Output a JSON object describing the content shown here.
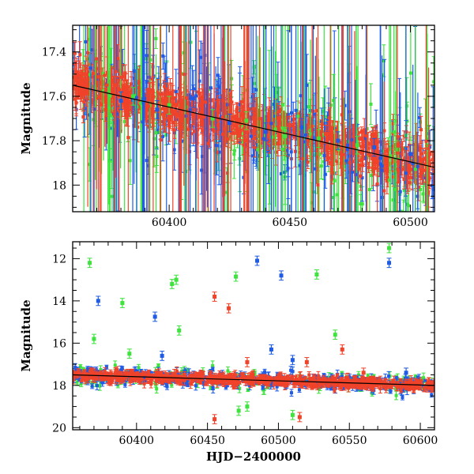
{
  "colors": {
    "blue": "#1f5be6",
    "green": "#3ee33e",
    "red": "#f0432a",
    "frame": "#000000",
    "trend": "#000000"
  },
  "chart_data": [
    {
      "type": "scatter",
      "panel": "top",
      "title": "",
      "xlabel": "",
      "ylabel": "Magnitude",
      "xlim": [
        60360,
        60510
      ],
      "ylim": [
        18.12,
        17.28
      ],
      "inverted_y": true,
      "xticks_major": [
        60400,
        60450,
        60500
      ],
      "yticks_major": [
        17.4,
        17.6,
        17.8,
        18
      ],
      "xtick_labels": [
        "60400",
        "60450",
        "60500"
      ],
      "ytick_labels": [
        "17.4",
        "17.6",
        "17.8",
        "18"
      ],
      "trend_line": {
        "x": [
          60360,
          60510
        ],
        "y": [
          17.55,
          17.92
        ]
      },
      "series": [
        {
          "color_key": "blue",
          "points": [
            [
              60380,
              17.62
            ],
            [
              60395,
              17.66
            ],
            [
              60410,
              17.61
            ],
            [
              60425,
              17.72
            ],
            [
              60440,
              17.76
            ],
            [
              60455,
              17.74
            ],
            [
              60470,
              17.8
            ],
            [
              60485,
              17.83
            ],
            [
              60500,
              17.86
            ]
          ]
        },
        {
          "color_key": "green",
          "points": [
            [
              60385,
              17.6
            ],
            [
              60400,
              17.64
            ],
            [
              60418,
              17.7
            ],
            [
              60432,
              17.71
            ],
            [
              60448,
              17.78
            ],
            [
              60462,
              17.79
            ],
            [
              60478,
              17.82
            ],
            [
              60495,
              17.84
            ]
          ]
        },
        {
          "color_key": "red",
          "points": [
            [
              60365,
              17.5
            ],
            [
              60378,
              17.55
            ],
            [
              60392,
              17.58
            ],
            [
              60405,
              17.62
            ],
            [
              60420,
              17.66
            ],
            [
              60435,
              17.7
            ],
            [
              60450,
              17.73
            ],
            [
              60465,
              17.77
            ],
            [
              60480,
              17.79
            ],
            [
              60495,
              17.82
            ],
            [
              60508,
              17.86
            ]
          ]
        }
      ]
    },
    {
      "type": "scatter",
      "panel": "bottom",
      "title": "",
      "xlabel": "HJD−2400000",
      "ylabel": "Magnitude",
      "xlim": [
        60355,
        60610
      ],
      "ylim": [
        20.1,
        11.2
      ],
      "inverted_y": true,
      "xticks_major": [
        60400,
        60450,
        60500,
        60550,
        60600
      ],
      "yticks_major": [
        12,
        14,
        16,
        18,
        20
      ],
      "xtick_labels": [
        "60400",
        "60450",
        "60500",
        "60550",
        "60600"
      ],
      "ytick_labels": [
        "12",
        "14",
        "16",
        "18",
        "20"
      ],
      "trend_line": {
        "x": [
          60355,
          60610
        ],
        "y": [
          17.5,
          18.0
        ]
      },
      "series": [
        {
          "color_key": "blue",
          "points": [
            [
              60373,
              14.0
            ],
            [
              60413,
              14.75
            ],
            [
              60485,
              12.1
            ],
            [
              60502,
              12.8
            ],
            [
              60578,
              12.2
            ],
            [
              60495,
              16.3
            ],
            [
              60510,
              16.8
            ],
            [
              60418,
              16.6
            ],
            [
              60590,
              17.4
            ]
          ]
        },
        {
          "color_key": "green",
          "points": [
            [
              60367,
              12.2
            ],
            [
              60370,
              15.8
            ],
            [
              60390,
              14.1
            ],
            [
              60425,
              13.2
            ],
            [
              60428,
              13.0
            ],
            [
              60430,
              15.4
            ],
            [
              60470,
              12.85
            ],
            [
              60527,
              12.75
            ],
            [
              60578,
              11.5
            ],
            [
              60472,
              19.2
            ],
            [
              60478,
              19.0
            ],
            [
              60510,
              19.4
            ],
            [
              60395,
              16.5
            ],
            [
              60540,
              15.6
            ]
          ]
        },
        {
          "color_key": "red",
          "points": [
            [
              60455,
              13.8
            ],
            [
              60465,
              14.35
            ],
            [
              60478,
              16.9
            ],
            [
              60520,
              16.9
            ],
            [
              60545,
              16.3
            ],
            [
              60455,
              19.6
            ],
            [
              60515,
              19.5
            ],
            [
              60560,
              17.4
            ]
          ]
        }
      ]
    }
  ]
}
